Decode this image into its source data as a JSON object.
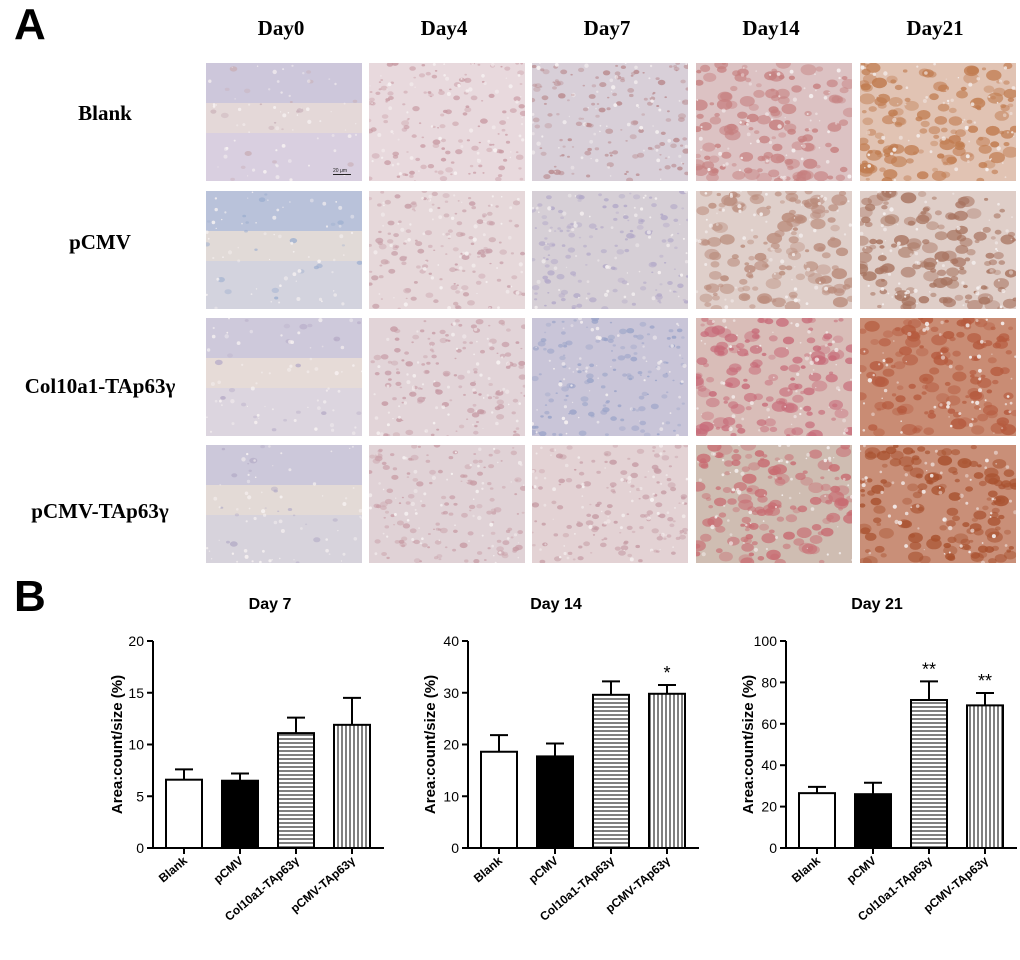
{
  "panel_a": {
    "letter": "A",
    "columns": [
      "Day0",
      "Day4",
      "Day7",
      "Day14",
      "Day21"
    ],
    "rows": [
      "Blank",
      "pCMV",
      "Col10a1-TAp63γ",
      "pCMV-TAp63γ"
    ],
    "scale_bar": "20 μm"
  },
  "panel_b": {
    "letter": "B"
  },
  "colors": {
    "bar_outline": "#000000",
    "fill_blank": "#ffffff",
    "fill_pcmv": "#000000"
  },
  "chart_data": [
    {
      "type": "bar",
      "title": "Day 7",
      "ylabel": "Area:count/size (%)",
      "xlabel": "",
      "ylim": [
        0,
        20
      ],
      "yticks": [
        0,
        5,
        10,
        15,
        20
      ],
      "categories": [
        "Blank",
        "pCMV",
        "Col10a1-TAp63γ",
        "pCMV-TAp63γ"
      ],
      "values": [
        6.6,
        6.5,
        11.1,
        11.9
      ],
      "errors": [
        1.0,
        0.7,
        1.5,
        2.6
      ],
      "fills": [
        "white",
        "black",
        "horizontal-lines",
        "vertical-lines"
      ],
      "annotations": [
        "",
        "",
        "",
        ""
      ],
      "grid": false
    },
    {
      "type": "bar",
      "title": "Day 14",
      "ylabel": "Area:count/size (%)",
      "xlabel": "",
      "ylim": [
        0,
        40
      ],
      "yticks": [
        0,
        10,
        20,
        30,
        40
      ],
      "categories": [
        "Blank",
        "pCMV",
        "Col10a1-TAp63γ",
        "pCMV-TAp63γ"
      ],
      "values": [
        18.6,
        17.7,
        29.6,
        29.8
      ],
      "errors": [
        3.2,
        2.5,
        2.6,
        1.7
      ],
      "fills": [
        "white",
        "black",
        "horizontal-lines",
        "vertical-lines"
      ],
      "annotations": [
        "",
        "",
        "",
        "*"
      ],
      "grid": false
    },
    {
      "type": "bar",
      "title": "Day 21",
      "ylabel": "Area:count/size (%)",
      "xlabel": "",
      "ylim": [
        0,
        100
      ],
      "yticks": [
        0,
        20,
        40,
        60,
        80,
        100
      ],
      "categories": [
        "Blank",
        "pCMV",
        "Col10a1-TAp63γ",
        "pCMV-TAp63γ"
      ],
      "values": [
        26.5,
        26.0,
        71.5,
        68.9
      ],
      "errors": [
        3.0,
        5.5,
        9.0,
        6.0
      ],
      "fills": [
        "white",
        "black",
        "horizontal-lines",
        "vertical-lines"
      ],
      "annotations": [
        "",
        "",
        "**",
        "**"
      ],
      "grid": false
    }
  ]
}
